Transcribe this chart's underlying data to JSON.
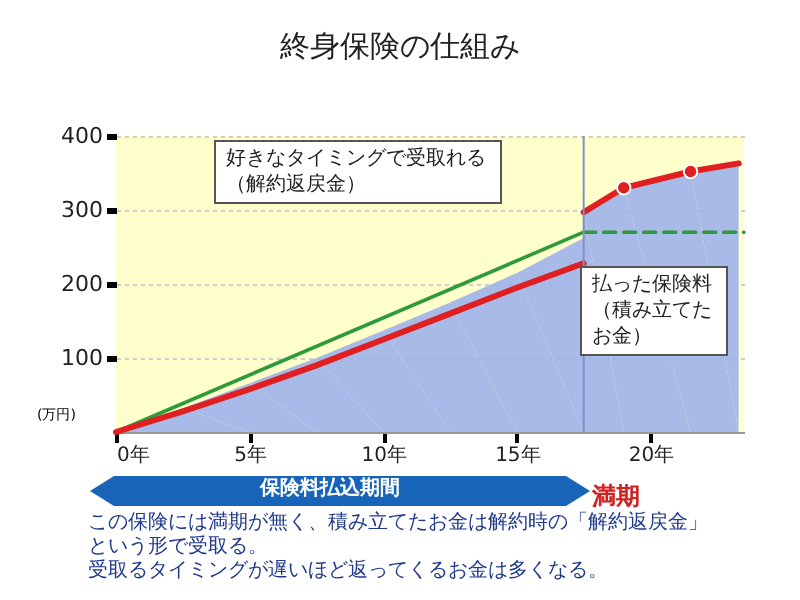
{
  "chart_data": {
    "type": "line",
    "title": "終身保険の仕組み",
    "ylabel": "(万円)",
    "xlim": [
      0,
      23.5
    ],
    "ylim": [
      0,
      400
    ],
    "xticks": [
      {
        "value": 0,
        "label": "0年"
      },
      {
        "value": 5,
        "label": "5年"
      },
      {
        "value": 10,
        "label": "10年"
      },
      {
        "value": 15,
        "label": "15年"
      },
      {
        "value": 20,
        "label": "20年"
      }
    ],
    "yticks": [
      100,
      200,
      300,
      400
    ],
    "grid": "y",
    "series": [
      {
        "type": "area",
        "color": "#9fb2ea",
        "x": [
          0,
          2.5,
          5,
          7.5,
          10,
          12.5,
          15,
          17.5
        ],
        "values": [
          0,
          32,
          66,
          100,
          137,
          175,
          215,
          262
        ]
      },
      {
        "type": "area",
        "color": "#9fb2ea",
        "x": [
          17.5,
          19,
          21.5,
          23.3
        ],
        "values": [
          297,
          330,
          352,
          363
        ]
      },
      {
        "color": "#2e9a3a",
        "x": [
          0,
          17.5
        ],
        "values": [
          0,
          270
        ]
      },
      {
        "color": "#2e9a3a",
        "line_style": "dashed",
        "x": [
          17.5,
          23.5
        ],
        "values": [
          270,
          270
        ]
      },
      {
        "color": "#e02020",
        "x": [
          0,
          2.5,
          5,
          7.5,
          10,
          12.5,
          15,
          17.5
        ],
        "values": [
          0,
          28,
          58,
          90,
          125,
          160,
          195,
          228
        ]
      },
      {
        "color": "#e02020",
        "x": [
          17.5,
          19,
          21.5,
          23.3
        ],
        "values": [
          297,
          330,
          352,
          363
        ]
      },
      {
        "type": "scatter",
        "color": "#e02020",
        "marker": "circle",
        "x": [
          19,
          21.5
        ],
        "values": [
          330,
          352
        ]
      }
    ],
    "ref_lines": [
      {
        "axis": "x",
        "value": 17.5,
        "label": "満期",
        "color": "#8090c8"
      }
    ],
    "annotations": [
      "好きなタイミングで受取れる（解約返戻金）",
      "払った保険料（積み立てたお金）",
      "保険料払込期間",
      "この保険には満期が無く、積み立てたお金は解約時の「解約返戻金」という形で受取る。",
      "受取るタイミングが遅いほど返ってくるお金は多くなる。"
    ]
  }
}
